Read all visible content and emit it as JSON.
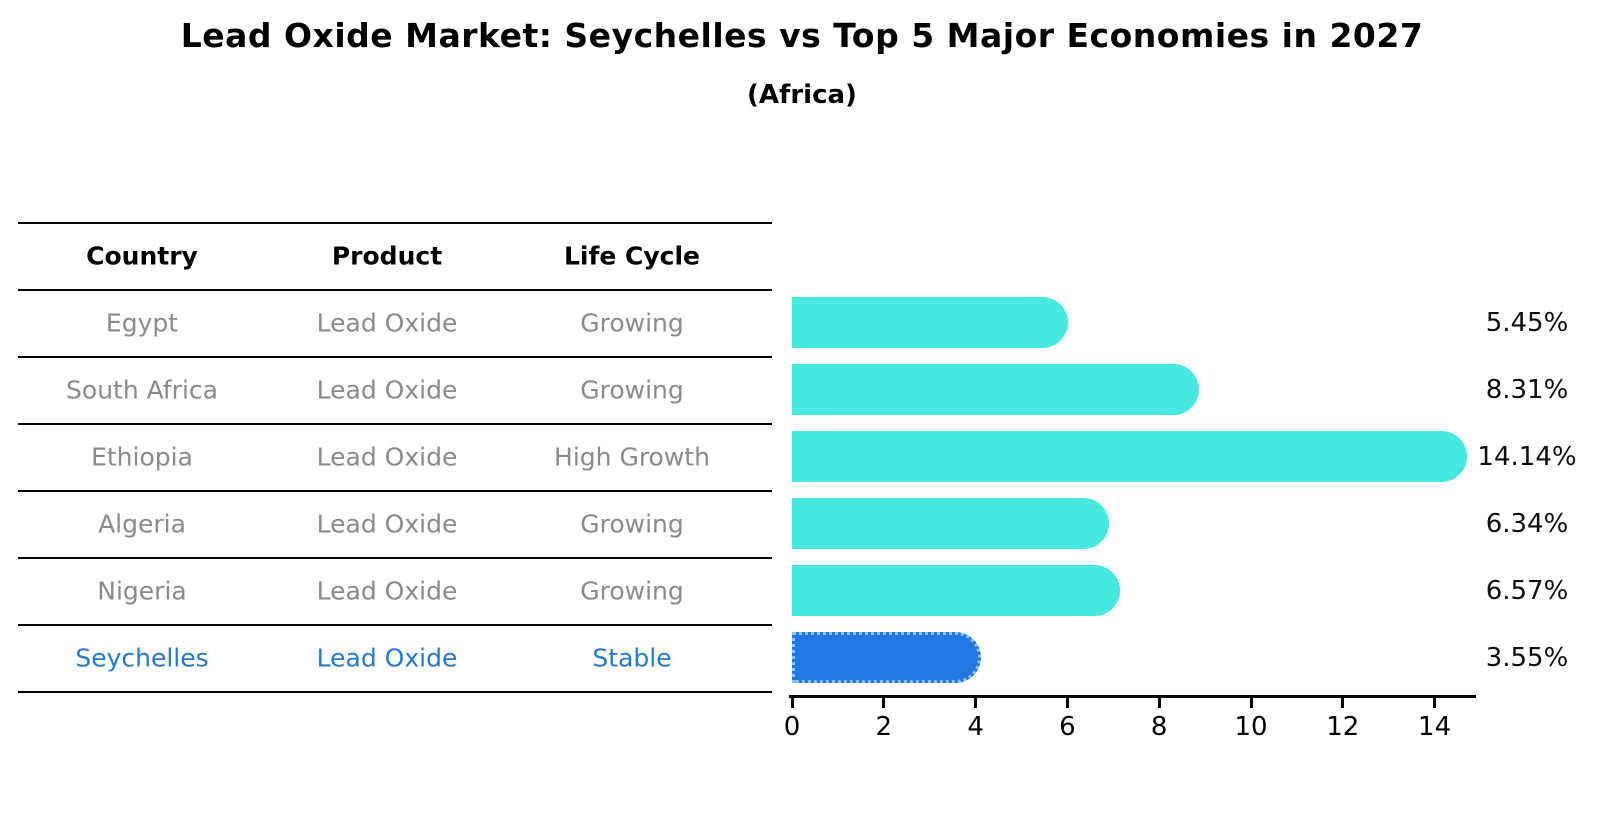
{
  "title": "Lead Oxide Market: Seychelles vs Top 5 Major Economies in 2027",
  "subtitle": "(Africa)",
  "table": {
    "headers": [
      "Country",
      "Product",
      "Life Cycle"
    ],
    "rows": [
      {
        "country": "Egypt",
        "product": "Lead Oxide",
        "life_cycle": "Growing",
        "highlight": false
      },
      {
        "country": "South Africa",
        "product": "Lead Oxide",
        "life_cycle": "Growing",
        "highlight": false
      },
      {
        "country": "Ethiopia",
        "product": "Lead Oxide",
        "life_cycle": "High Growth",
        "highlight": false
      },
      {
        "country": "Algeria",
        "product": "Lead Oxide",
        "life_cycle": "Growing",
        "highlight": false
      },
      {
        "country": "Nigeria",
        "product": "Lead Oxide",
        "life_cycle": "Growing",
        "highlight": false
      },
      {
        "country": "Seychelles",
        "product": "Lead Oxide",
        "life_cycle": "Stable",
        "highlight": true
      }
    ]
  },
  "chart_data": {
    "type": "bar",
    "orientation": "horizontal",
    "title": "Lead Oxide Market: Seychelles vs Top 5 Major Economies in 2027",
    "subtitle": "(Africa)",
    "categories": [
      "Egypt",
      "South Africa",
      "Ethiopia",
      "Algeria",
      "Nigeria",
      "Seychelles"
    ],
    "values": [
      5.45,
      8.31,
      14.14,
      6.34,
      6.57,
      3.55
    ],
    "value_labels": [
      "5.45%",
      "8.31%",
      "14.14%",
      "6.34%",
      "6.57%",
      "3.55%"
    ],
    "x_ticks": [
      0,
      2,
      4,
      6,
      8,
      10,
      12,
      14
    ],
    "xlim": [
      0,
      14.9
    ],
    "grid": false,
    "legend": "none",
    "highlight_index": 5,
    "bar_color": "#47e8e0",
    "highlight_bar_color": "#2277e0",
    "highlight_border_color": "#8fc3f7"
  },
  "colors": {
    "background": "#ffffff",
    "table_line": "#000000",
    "header_text": "#000000",
    "row_text": "#8a8a8a",
    "highlight_text": "#2479d3",
    "value_text": "#0d0d0d"
  }
}
